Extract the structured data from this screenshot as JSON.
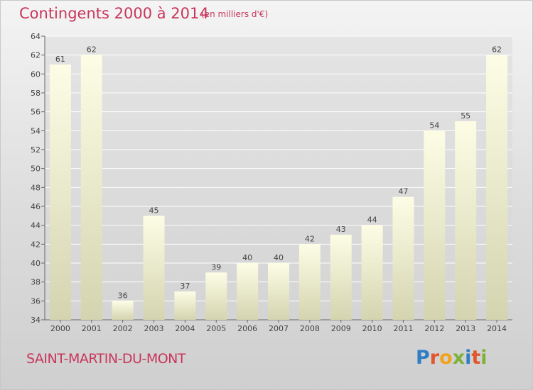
{
  "header": {
    "title": "Contingents 2000 à 2014",
    "subtitle": "(en milliers d'€)"
  },
  "footer": {
    "commune": "SAINT-MARTIN-DU-MONT",
    "logo_text": "Proxiti"
  },
  "chart_data": {
    "type": "bar",
    "title": "Contingents 2000 à 2014",
    "subtitle": "(en milliers d'€)",
    "xlabel": "",
    "ylabel": "",
    "categories": [
      "2000",
      "2001",
      "2002",
      "2003",
      "2004",
      "2005",
      "2006",
      "2007",
      "2008",
      "2009",
      "2010",
      "2011",
      "2012",
      "2013",
      "2014"
    ],
    "values": [
      61,
      62,
      36,
      45,
      37,
      39,
      40,
      40,
      42,
      43,
      44,
      47,
      54,
      55,
      62
    ],
    "ylim": [
      34,
      64
    ],
    "yticks": [
      34,
      36,
      38,
      40,
      42,
      44,
      46,
      48,
      50,
      52,
      54,
      56,
      58,
      60,
      62,
      64
    ],
    "grid": true,
    "legend": "none",
    "colors": {
      "bar_top": "#fbfbdf",
      "bar_bottom": "#d6d6b4",
      "text": "#c8365d",
      "grid": "#ffffff",
      "axis": "#666666"
    }
  }
}
